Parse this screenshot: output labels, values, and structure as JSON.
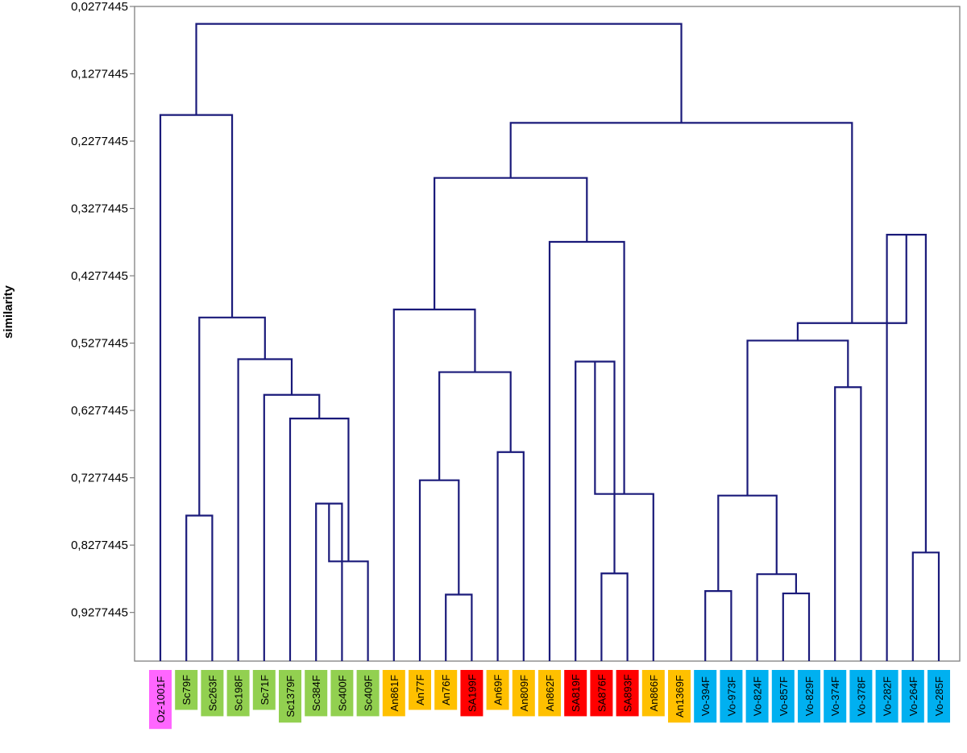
{
  "chart_data": {
    "type": "dendrogram",
    "ylabel": "similarity",
    "ylim": [
      0.0277445,
      1.0
    ],
    "y_ticks": [
      "0,0277445",
      "0,1277445",
      "0,2277445",
      "0,3277445",
      "0,4277445",
      "0,5277445",
      "0,6277445",
      "0,7277445",
      "0,8277445",
      "0,9277445"
    ],
    "y_tick_values": [
      0.0277445,
      0.1277445,
      0.2277445,
      0.3277445,
      0.4277445,
      0.5277445,
      0.6277445,
      0.7277445,
      0.8277445,
      0.9277445
    ],
    "link_color": "#1a1a7a",
    "groups": {
      "Oz": {
        "color": "#ff66ff"
      },
      "Sc": {
        "color": "#92d050"
      },
      "An": {
        "color": "#ffc000"
      },
      "SA": {
        "color": "#ff0000"
      },
      "Vo": {
        "color": "#00b0f0"
      }
    },
    "leaves": [
      {
        "label": "Oz-1001F",
        "group": "Oz"
      },
      {
        "label": "Sc79F",
        "group": "Sc"
      },
      {
        "label": "Sc263F",
        "group": "Sc"
      },
      {
        "label": "Sc198F",
        "group": "Sc"
      },
      {
        "label": "Sc71F",
        "group": "Sc"
      },
      {
        "label": "Sc1379F",
        "group": "Sc"
      },
      {
        "label": "Sc384F",
        "group": "Sc"
      },
      {
        "label": "Sc400F",
        "group": "Sc"
      },
      {
        "label": "Sc409F",
        "group": "Sc"
      },
      {
        "label": "An861F",
        "group": "An"
      },
      {
        "label": "An77F",
        "group": "An"
      },
      {
        "label": "An76F",
        "group": "An"
      },
      {
        "label": "SA199F",
        "group": "SA"
      },
      {
        "label": "An69F",
        "group": "An"
      },
      {
        "label": "An809F",
        "group": "An"
      },
      {
        "label": "An862F",
        "group": "An"
      },
      {
        "label": "SA819F",
        "group": "SA"
      },
      {
        "label": "SA876F",
        "group": "SA"
      },
      {
        "label": "SA893F",
        "group": "SA"
      },
      {
        "label": "An866F",
        "group": "An"
      },
      {
        "label": "An1369F",
        "group": "An"
      },
      {
        "label": "Vo-394F",
        "group": "Vo"
      },
      {
        "label": "Vo-973F",
        "group": "Vo"
      },
      {
        "label": "Vo-824F",
        "group": "Vo"
      },
      {
        "label": "Vo-857F",
        "group": "Vo"
      },
      {
        "label": "Vo-829F",
        "group": "Vo"
      },
      {
        "label": "Vo-374F",
        "group": "Vo"
      },
      {
        "label": "Vo-378F",
        "group": "Vo"
      },
      {
        "label": "Vo-282F",
        "group": "Vo"
      },
      {
        "label": "Vo-264F",
        "group": "Vo"
      },
      {
        "label": "Vo-285F",
        "group": "Vo"
      }
    ],
    "merges": [
      {
        "left": 1,
        "right": 2,
        "height": 0.7839
      },
      {
        "left": 6,
        "right": 7,
        "height": 0.7661
      },
      {
        "left": -2,
        "right": 8,
        "height": 0.8519
      },
      {
        "left": 5,
        "right": -3,
        "height": 0.6397
      },
      {
        "left": 4,
        "right": -4,
        "height": 0.6046
      },
      {
        "left": 3,
        "right": -5,
        "height": 0.5516
      },
      {
        "left": -1,
        "right": -6,
        "height": 0.4897
      },
      {
        "left": 0,
        "right": -7,
        "height": 0.1889
      },
      {
        "left": 11,
        "right": 12,
        "height": 0.9012
      },
      {
        "left": 10,
        "right": -9,
        "height": 0.7314
      },
      {
        "left": 13,
        "right": 14,
        "height": 0.6896
      },
      {
        "left": -10,
        "right": -11,
        "height": 0.5708
      },
      {
        "left": 9,
        "right": -12,
        "height": 0.4778
      },
      {
        "left": 17,
        "right": 18,
        "height": 0.8698
      },
      {
        "left": 16,
        "right": -14,
        "height": 0.5552
      },
      {
        "left": -15,
        "right": 19,
        "height": 0.7518
      },
      {
        "left": 15,
        "right": -16,
        "height": 0.3774
      },
      {
        "left": -13,
        "right": -17,
        "height": 0.2824
      },
      {
        "left": 21,
        "right": 22,
        "height": 0.896
      },
      {
        "left": 24,
        "right": 25,
        "height": 0.8995
      },
      {
        "left": 23,
        "right": -20,
        "height": 0.8709
      },
      {
        "left": -19,
        "right": -21,
        "height": 0.7542
      },
      {
        "left": 26,
        "right": 27,
        "height": 0.5932
      },
      {
        "left": -22,
        "right": -23,
        "height": 0.524
      },
      {
        "left": 29,
        "right": 30,
        "height": 0.8387
      },
      {
        "left": 28,
        "right": -25,
        "height": 0.3667
      },
      {
        "left": -24,
        "right": -26,
        "height": 0.498
      },
      {
        "left": -18,
        "right": -27,
        "height": 0.2006
      },
      {
        "left": -8,
        "right": -28,
        "height": 0.0536
      }
    ]
  }
}
